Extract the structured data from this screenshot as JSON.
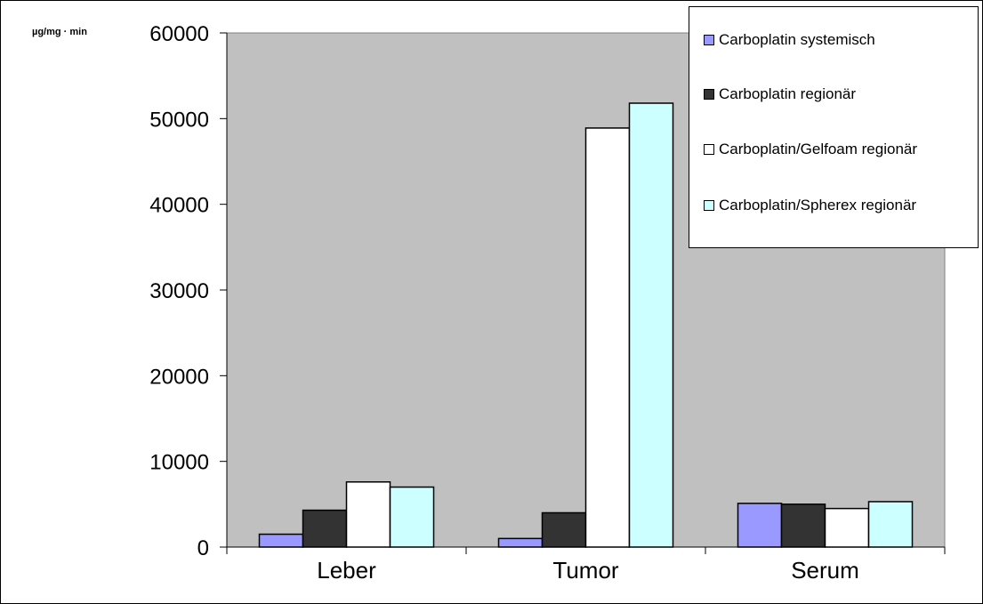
{
  "chart_data": {
    "type": "bar",
    "ylabel": "µg/mg · min",
    "categories": [
      "Leber",
      "Tumor",
      "Serum"
    ],
    "ylim": [
      0,
      60000
    ],
    "yticks": [
      0,
      10000,
      20000,
      30000,
      40000,
      50000,
      60000
    ],
    "grid": false,
    "legend_position": "top-right",
    "plot_background": "#c0c0c0",
    "series": [
      {
        "name": "Carboplatin systemisch",
        "color": "#9999ff",
        "values": [
          1500,
          1000,
          5100
        ]
      },
      {
        "name": "Carboplatin regionär",
        "color": "#333333",
        "values": [
          4300,
          4000,
          5000
        ]
      },
      {
        "name": "Carboplatin/Gelfoam regionär",
        "color": "#ffffff",
        "values": [
          7600,
          48900,
          4500
        ]
      },
      {
        "name": "Carboplatin/Spherex regionär",
        "color": "#ccffff",
        "values": [
          7000,
          51800,
          5300
        ]
      }
    ]
  }
}
